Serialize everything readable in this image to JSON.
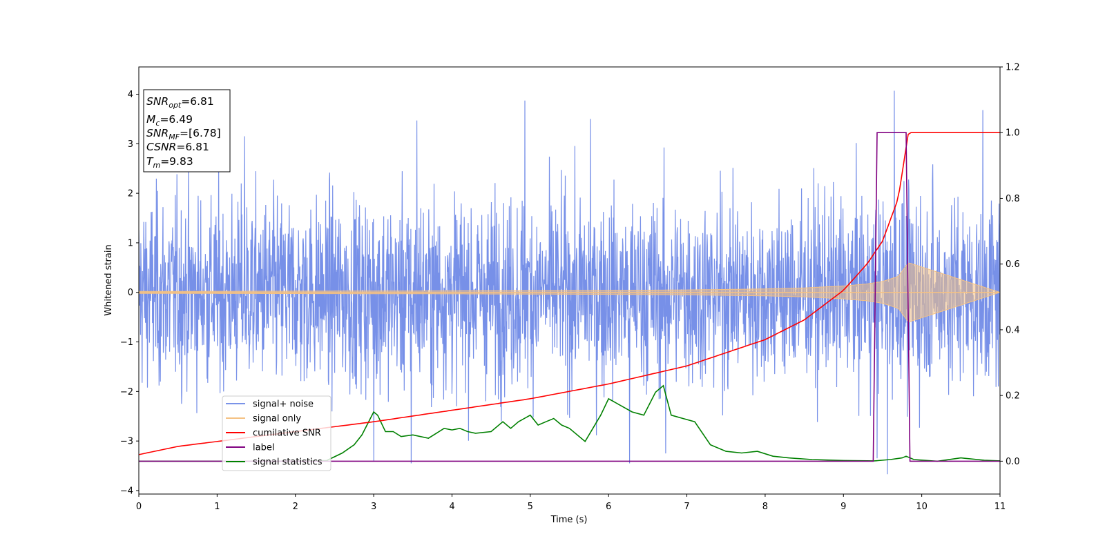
{
  "chart_data": {
    "type": "line",
    "xlabel": "Time (s)",
    "ylabel": "Whitened strain",
    "xlim": [
      0,
      11
    ],
    "ylim": [
      -4.07,
      4.55
    ],
    "y2lim": [
      -0.1,
      1.2
    ],
    "xticks": [
      "0",
      "1",
      "2",
      "3",
      "4",
      "5",
      "6",
      "7",
      "8",
      "9",
      "10",
      "11"
    ],
    "yticks": [
      "−4",
      "−3",
      "−2",
      "−1",
      "0",
      "1",
      "2",
      "3",
      "4"
    ],
    "y2ticks": [
      "0.0",
      "0.2",
      "0.4",
      "0.6",
      "0.8",
      "1.0",
      "1.2"
    ],
    "grid": false,
    "legend_position": "lower-left",
    "colors": {
      "noise": "#6b87e6",
      "signal": "#f5c182",
      "cumulative_snr": "#ff0000",
      "label": "#800080",
      "statistics": "#008000"
    },
    "info_box": [
      {
        "sym": "SNR",
        "sub": "opt",
        "val": "=6.81"
      },
      {
        "sym": "M",
        "sub": "c",
        "val": "=6.49"
      },
      {
        "sym": "SNR",
        "sub": "MF",
        "val": "=[6.78]"
      },
      {
        "sym": "CSNR",
        "sub": "",
        "val": "=6.81"
      },
      {
        "sym": "T",
        "sub": "m",
        "val": "=9.83"
      }
    ],
    "series": [
      {
        "name": "signal+ noise",
        "axis": "left",
        "noise_std": 0.95,
        "notable_spikes": [
          {
            "x": 3.0,
            "y": -3.4
          },
          {
            "x": 3.48,
            "y": -3.45
          },
          {
            "x": 4.93,
            "y": 3.87
          },
          {
            "x": 6.27,
            "y": -3.45
          },
          {
            "x": 6.73,
            "y": -3.25
          },
          {
            "x": 9.43,
            "y": -3.35
          },
          {
            "x": 9.56,
            "y": -3.67
          },
          {
            "x": 9.65,
            "y": 4.07
          },
          {
            "x": 10.78,
            "y": 3.68
          },
          {
            "x": 3.55,
            "y": 3.47
          },
          {
            "x": 1.35,
            "y": 3.15
          },
          {
            "x": 5.77,
            "y": 3.5
          }
        ]
      },
      {
        "name": "signal only",
        "axis": "left",
        "envelope": {
          "x": [
            0,
            2,
            4,
            6,
            7,
            8,
            8.5,
            9.0,
            9.3,
            9.5,
            9.7,
            9.83,
            11
          ],
          "amp": [
            0.02,
            0.025,
            0.03,
            0.04,
            0.05,
            0.07,
            0.09,
            0.13,
            0.17,
            0.22,
            0.32,
            0.6,
            0.0
          ]
        }
      },
      {
        "name": "cumilative SNR",
        "axis": "right",
        "x": [
          0,
          0.5,
          1,
          2,
          3,
          4,
          5,
          6,
          7,
          7.5,
          8,
          8.5,
          9,
          9.3,
          9.5,
          9.7,
          9.83,
          11
        ],
        "y": [
          0.02,
          0.045,
          0.06,
          0.09,
          0.12,
          0.155,
          0.19,
          0.235,
          0.29,
          0.33,
          0.37,
          0.43,
          0.52,
          0.6,
          0.67,
          0.8,
          1.0,
          1.0
        ]
      },
      {
        "name": "label",
        "axis": "right",
        "x": [
          0,
          9.38,
          9.43,
          9.8,
          9.85,
          11
        ],
        "y": [
          0,
          0,
          1,
          1,
          0,
          0
        ]
      },
      {
        "name": "signal statistics",
        "axis": "right",
        "x": [
          0,
          2,
          2.4,
          2.6,
          2.75,
          2.85,
          3.0,
          3.05,
          3.15,
          3.25,
          3.35,
          3.5,
          3.7,
          3.9,
          4.0,
          4.1,
          4.2,
          4.3,
          4.5,
          4.65,
          4.75,
          4.85,
          5.0,
          5.1,
          5.2,
          5.3,
          5.4,
          5.5,
          5.7,
          5.9,
          6.0,
          6.15,
          6.3,
          6.45,
          6.6,
          6.7,
          6.8,
          6.95,
          7.1,
          7.3,
          7.5,
          7.7,
          7.9,
          8.1,
          8.3,
          8.6,
          9.0,
          9.4,
          9.6,
          9.75,
          9.8,
          9.9,
          10.2,
          10.5,
          10.8,
          11
        ],
        "y": [
          0,
          0,
          0.002,
          0.025,
          0.05,
          0.08,
          0.15,
          0.14,
          0.09,
          0.09,
          0.075,
          0.08,
          0.07,
          0.1,
          0.095,
          0.1,
          0.09,
          0.085,
          0.09,
          0.12,
          0.1,
          0.12,
          0.14,
          0.11,
          0.12,
          0.13,
          0.11,
          0.1,
          0.06,
          0.14,
          0.19,
          0.17,
          0.15,
          0.14,
          0.21,
          0.23,
          0.14,
          0.13,
          0.12,
          0.05,
          0.03,
          0.025,
          0.03,
          0.015,
          0.01,
          0.005,
          0.002,
          0.001,
          0.005,
          0.01,
          0.015,
          0.005,
          0.0,
          0.01,
          0.003,
          0.001
        ]
      }
    ]
  }
}
